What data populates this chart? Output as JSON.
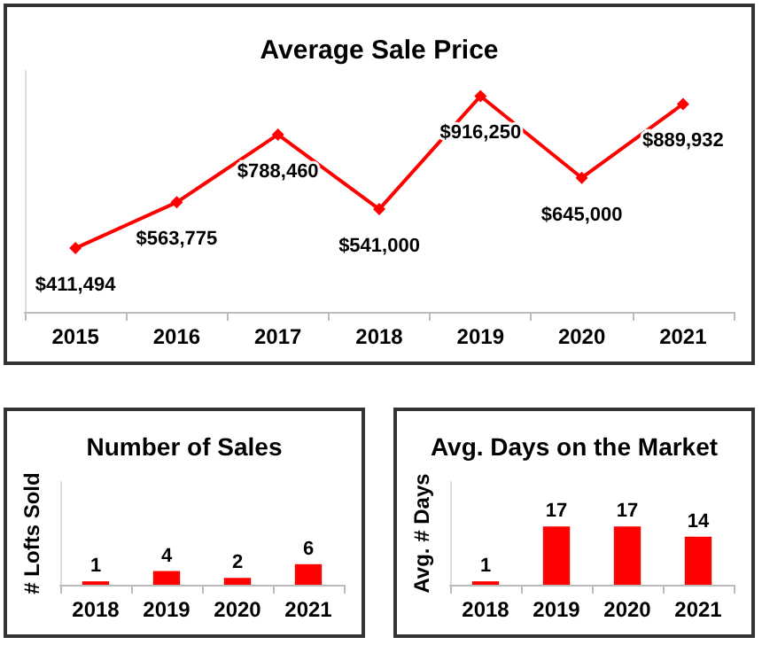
{
  "chart_data": [
    {
      "type": "line",
      "title": "Average Sale Price",
      "categories": [
        "2015",
        "2016",
        "2017",
        "2018",
        "2019",
        "2020",
        "2021"
      ],
      "series": [
        {
          "color": "#ff0000",
          "values": [
            411494,
            563775,
            788460,
            541000,
            916250,
            645000,
            889932
          ],
          "value_labels": [
            "$411,494",
            "$563,775",
            "$788,460",
            "$541,000",
            "$916,250",
            "$645,000",
            "$889,932"
          ]
        }
      ],
      "ylim": [
        200000,
        1000000
      ],
      "tick_labels": "x",
      "marker": "diamond",
      "line_style": "solid",
      "grid": false
    },
    {
      "type": "bar",
      "title": "Number of Sales",
      "ylabel": "# Lofts Sold",
      "categories": [
        "2018",
        "2019",
        "2020",
        "2021"
      ],
      "series": [
        {
          "color": "#ff0000",
          "values": [
            1,
            4,
            2,
            6
          ]
        }
      ],
      "ylim": [
        0,
        30
      ],
      "tick_labels": "x",
      "data_labels": true,
      "grid": false
    },
    {
      "type": "bar",
      "title": "Avg. Days on the Market",
      "ylabel": "Avg. # Days",
      "categories": [
        "2018",
        "2019",
        "2020",
        "2021"
      ],
      "series": [
        {
          "color": "#ff0000",
          "values": [
            1,
            17,
            17,
            14
          ]
        }
      ],
      "ylim": [
        0,
        30
      ],
      "tick_labels": "x",
      "data_labels": true,
      "grid": false
    }
  ]
}
